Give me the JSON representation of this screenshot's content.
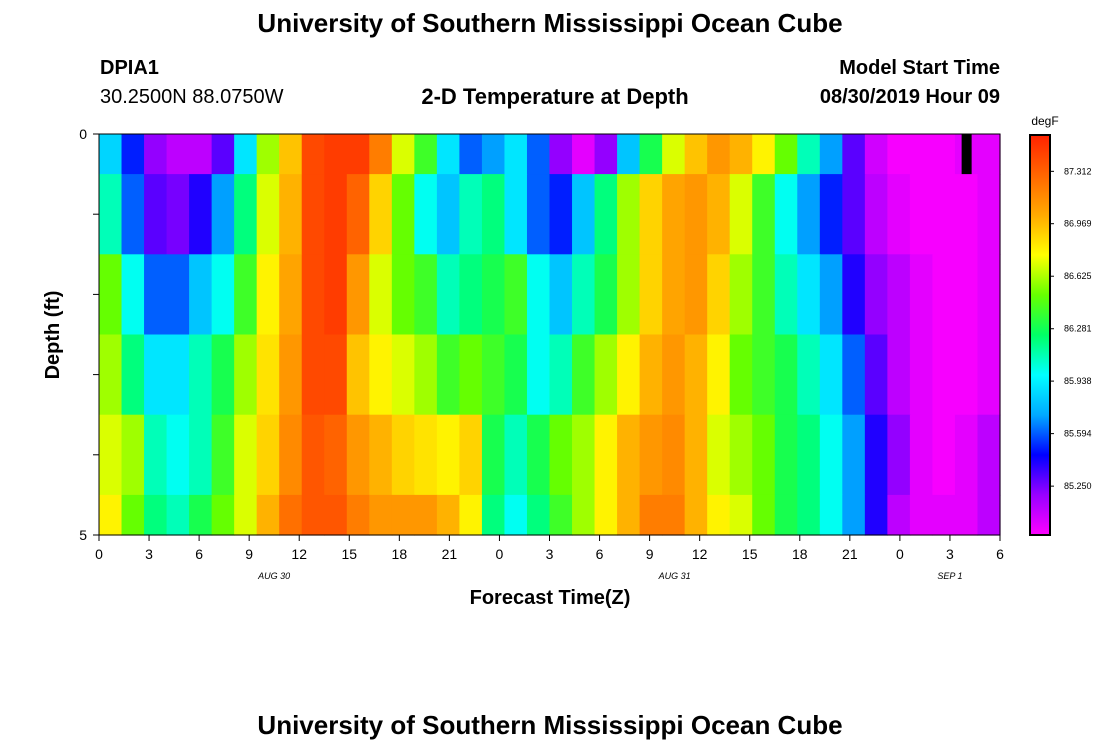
{
  "header": {
    "title": "University of Southern Mississippi Ocean Cube",
    "station": "DPIA1",
    "coordinates": "30.2500N 88.0750W",
    "plot_title": "2-D Temperature at Depth",
    "model_start_label": "Model Start Time",
    "model_start_value": "08/30/2019 Hour 09"
  },
  "footer": {
    "title": "University of Southern Mississippi Ocean Cube"
  },
  "chart_data": {
    "type": "heatmap",
    "title": "2-D Temperature at Depth",
    "xlabel": "Forecast Time(Z)",
    "ylabel": "Depth (ft)",
    "x_ticks": [
      "0",
      "3",
      "6",
      "9",
      "12",
      "15",
      "18",
      "21",
      "0",
      "3",
      "6",
      "9",
      "12",
      "15",
      "18",
      "21",
      "0",
      "3",
      "6"
    ],
    "date_labels": [
      {
        "text": "AUG 30",
        "tick_index": 3.5
      },
      {
        "text": "AUG 31",
        "tick_index": 11.5
      },
      {
        "text": "SEP 1",
        "tick_index": 17
      }
    ],
    "y_ticks": [
      "0",
      "5"
    ],
    "ylim": [
      0,
      5
    ],
    "xlim_hours": [
      0,
      54
    ],
    "colorbar": {
      "unit": "degF",
      "range": [
        84.93,
        87.55
      ],
      "tick_labels": [
        "87.312",
        "86.969",
        "86.625",
        "86.281",
        "85.938",
        "85.594",
        "85.250"
      ],
      "tick_values": [
        87.312,
        86.969,
        86.625,
        86.281,
        85.938,
        85.594,
        85.25
      ]
    },
    "colors": {
      "scale": [
        "#ff00ff",
        "#9900ff",
        "#0000ff",
        "#00aaff",
        "#00ffff",
        "#00ff66",
        "#66ff00",
        "#ffff00",
        "#ffaa00",
        "#ff6600",
        "#ff2200"
      ]
    },
    "depth_levels": [
      "0.0-0.5",
      "0.5-1.5",
      "1.5-2.5",
      "2.5-3.5",
      "3.5-4.5",
      "4.5-5.0"
    ],
    "row_values": [
      [
        85.85,
        85.5,
        85.2,
        85.1,
        85.1,
        85.3,
        85.9,
        86.6,
        86.95,
        87.4,
        87.45,
        87.45,
        87.2,
        86.7,
        86.4,
        85.9,
        85.6,
        85.7,
        85.9,
        85.6,
        85.2,
        85.0,
        85.2,
        85.8,
        86.3,
        86.7,
        86.95,
        87.1,
        87.0,
        86.8,
        86.5,
        86.1,
        85.7,
        85.3,
        85.05,
        84.95,
        84.95,
        84.95,
        85.0,
        85.0
      ],
      [
        86.1,
        85.6,
        85.3,
        85.25,
        85.4,
        85.7,
        86.2,
        86.7,
        87.0,
        87.4,
        87.45,
        87.3,
        86.9,
        86.5,
        86.0,
        85.8,
        86.1,
        86.2,
        85.9,
        85.6,
        85.5,
        85.8,
        86.2,
        86.6,
        86.9,
        87.05,
        87.1,
        87.0,
        86.7,
        86.4,
        86.0,
        85.7,
        85.5,
        85.3,
        85.1,
        85.0,
        84.95,
        84.95,
        84.95,
        85.0
      ],
      [
        86.5,
        86.0,
        85.6,
        85.6,
        85.8,
        86.0,
        86.4,
        86.8,
        87.05,
        87.4,
        87.45,
        87.1,
        86.7,
        86.5,
        86.4,
        86.1,
        86.2,
        86.3,
        86.4,
        86.0,
        85.8,
        86.1,
        86.3,
        86.6,
        86.9,
        87.05,
        87.1,
        86.9,
        86.6,
        86.4,
        86.1,
        85.9,
        85.7,
        85.4,
        85.2,
        85.1,
        85.0,
        84.95,
        84.95,
        85.0
      ],
      [
        86.6,
        86.2,
        85.9,
        85.9,
        86.1,
        86.3,
        86.6,
        86.85,
        87.1,
        87.4,
        87.4,
        86.95,
        86.8,
        86.7,
        86.6,
        86.4,
        86.5,
        86.4,
        86.3,
        86.0,
        86.1,
        86.4,
        86.6,
        86.8,
        87.0,
        87.1,
        87.0,
        86.8,
        86.5,
        86.4,
        86.3,
        86.1,
        85.9,
        85.6,
        85.3,
        85.1,
        85.0,
        84.95,
        84.95,
        85.0
      ],
      [
        86.7,
        86.6,
        86.1,
        86.0,
        86.1,
        86.4,
        86.7,
        86.9,
        87.15,
        87.35,
        87.3,
        87.1,
        87.0,
        86.9,
        86.85,
        86.8,
        86.9,
        86.3,
        86.1,
        86.3,
        86.5,
        86.6,
        86.8,
        87.0,
        87.1,
        87.15,
        87.0,
        86.7,
        86.6,
        86.5,
        86.3,
        86.2,
        86.0,
        85.7,
        85.4,
        85.2,
        85.0,
        84.95,
        85.0,
        85.1
      ],
      [
        86.8,
        86.5,
        86.2,
        86.1,
        86.3,
        86.5,
        86.7,
        87.0,
        87.25,
        87.35,
        87.35,
        87.2,
        87.1,
        87.1,
        87.1,
        87.0,
        86.8,
        86.2,
        86.0,
        86.2,
        86.4,
        86.6,
        86.8,
        87.0,
        87.2,
        87.2,
        87.0,
        86.8,
        86.7,
        86.5,
        86.3,
        86.2,
        86.0,
        85.7,
        85.4,
        85.1,
        85.0,
        85.0,
        85.0,
        85.1
      ]
    ],
    "missing_marker": {
      "x_hour_range": [
        51.7,
        52.3
      ],
      "depth_range": [
        0,
        0.5
      ],
      "color": "#000000"
    },
    "grid": false
  }
}
